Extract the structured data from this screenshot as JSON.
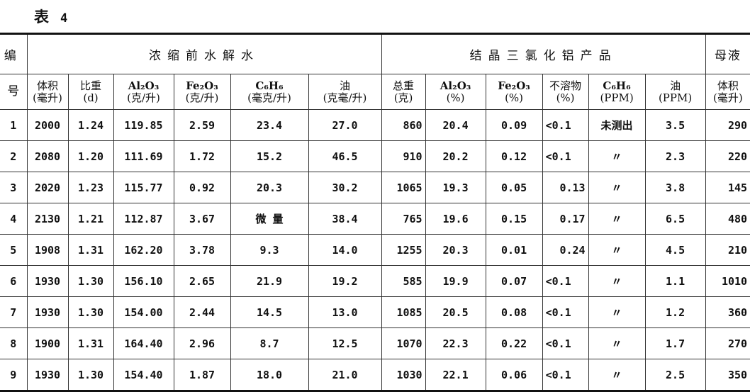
{
  "title": {
    "label": "表",
    "number": "4"
  },
  "header": {
    "id_top": "编",
    "id_bottom": "号",
    "group_before": "浓缩前水解水",
    "group_product": "结晶三氯化铝产品",
    "group_mother": "母液",
    "columns": [
      [
        "体积",
        "(毫升)"
      ],
      [
        "比重",
        "(d)"
      ],
      [
        "Al₂O₃",
        "(克/升)"
      ],
      [
        "Fe₂O₃",
        "(克/升)"
      ],
      [
        "C₆H₆",
        "(毫克/升)"
      ],
      [
        "油",
        "(克毫/升)"
      ],
      [
        "总重",
        "(克)"
      ],
      [
        "Al₂O₃",
        "(%)"
      ],
      [
        "Fe₂O₃",
        "(%)"
      ],
      [
        "不溶物",
        "(%)"
      ],
      [
        "C₆H₆",
        "(PPM)"
      ],
      [
        "油",
        "(PPM)"
      ],
      [
        "体积",
        "(毫升)"
      ]
    ]
  },
  "rows": [
    [
      "1",
      "2000",
      "1.24",
      "119.85",
      "2.59",
      "23.4",
      "27.0",
      "860",
      "20.4",
      "0.09",
      "<0.1",
      "未测出",
      "3.5",
      "290"
    ],
    [
      "2",
      "2080",
      "1.20",
      "111.69",
      "1.72",
      "15.2",
      "46.5",
      "910",
      "20.2",
      "0.12",
      "<0.1",
      "〃",
      "2.3",
      "220"
    ],
    [
      "3",
      "2020",
      "1.23",
      "115.77",
      "0.92",
      "20.3",
      "30.2",
      "1065",
      "19.3",
      "0.05",
      "0.13",
      "〃",
      "3.8",
      "145"
    ],
    [
      "4",
      "2130",
      "1.21",
      "112.87",
      "3.67",
      "微 量",
      "38.4",
      "765",
      "19.6",
      "0.15",
      "0.17",
      "〃",
      "6.5",
      "480"
    ],
    [
      "5",
      "1908",
      "1.31",
      "162.20",
      "3.78",
      "9.3",
      "14.0",
      "1255",
      "20.3",
      "0.01",
      "0.24",
      "〃",
      "4.5",
      "210"
    ],
    [
      "6",
      "1930",
      "1.30",
      "156.10",
      "2.65",
      "21.9",
      "19.2",
      "585",
      "19.9",
      "0.07",
      "<0.1",
      "〃",
      "1.1",
      "1010"
    ],
    [
      "7",
      "1930",
      "1.30",
      "154.00",
      "2.44",
      "14.5",
      "13.0",
      "1085",
      "20.5",
      "0.08",
      "<0.1",
      "〃",
      "1.2",
      "360"
    ],
    [
      "8",
      "1900",
      "1.31",
      "164.40",
      "2.96",
      "8.7",
      "12.5",
      "1070",
      "22.3",
      "0.22",
      "<0.1",
      "〃",
      "1.7",
      "270"
    ],
    [
      "9",
      "1930",
      "1.30",
      "154.40",
      "1.87",
      "18.0",
      "21.0",
      "1030",
      "22.1",
      "0.06",
      "<0.1",
      "〃",
      "2.5",
      "350"
    ]
  ]
}
